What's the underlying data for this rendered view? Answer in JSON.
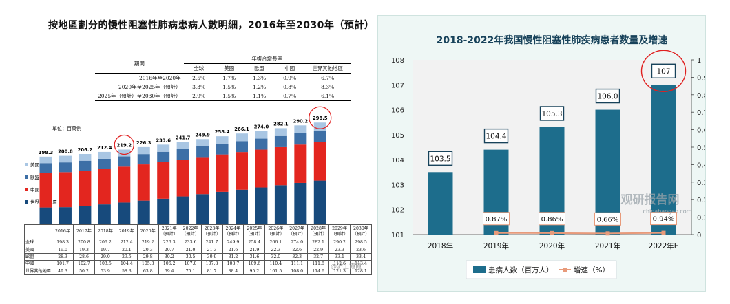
{
  "chart_data": [
    {
      "type": "bar",
      "title": "按地區劃分的慢性阻塞性肺病患病人數明細，2016年至2030年（預計）",
      "unit": "單位：百萬例",
      "cagr_table": {
        "header_period": "期間",
        "header_group": "年複合增長率",
        "columns": [
          "全球",
          "美國",
          "歐盟",
          "中國",
          "世界其他地區"
        ],
        "rows": [
          {
            "period": "2016年至2020年",
            "values": [
              "2.5%",
              "1.7%",
              "1.3%",
              "0.9%",
              "6.7%"
            ]
          },
          {
            "period": "2020年至2025年（預計）",
            "values": [
              "3.3%",
              "1.5%",
              "1.2%",
              "0.8%",
              "8.3%"
            ]
          },
          {
            "period": "2025年（預計）至2030年（預計）",
            "values": [
              "2.9%",
              "1.5%",
              "1.1%",
              "0.7%",
              "6.1%"
            ]
          }
        ]
      },
      "categories": [
        "2016年",
        "2017年",
        "2018年",
        "2019年",
        "2020年",
        "2021年（預計）",
        "2022年（預計）",
        "2023年（預計）",
        "2024年（預計）",
        "2025年（預計）",
        "2026年（預計）",
        "2027年（預計）",
        "2028年（預計）",
        "2029年（預計）",
        "2030年（預計）"
      ],
      "totals": [
        "198.3",
        "200.8",
        "206.2",
        "212.4",
        "219.2",
        "226.3",
        "233.6",
        "241.7",
        "249.9",
        "258.4",
        "266.1",
        "274.0",
        "282.1",
        "290.2",
        "298.5"
      ],
      "highlight_labels": [
        "219.2",
        "298.5"
      ],
      "series": [
        {
          "name": "世界其他地區",
          "color": "#174a7c",
          "values": [
            49.3,
            50.2,
            53.9,
            58.3,
            63.8,
            69.4,
            75.1,
            81.7,
            88.4,
            95.2,
            101.5,
            108.0,
            114.6,
            121.3,
            128.1
          ]
        },
        {
          "name": "中國",
          "color": "#e3261f",
          "values": [
            101.7,
            102.7,
            103.5,
            104.4,
            105.3,
            106.2,
            107.0,
            107.8,
            108.7,
            109.6,
            110.4,
            111.1,
            111.8,
            112.6,
            113.4
          ]
        },
        {
          "name": "歐盟",
          "color": "#3d6fa6",
          "values": [
            28.3,
            28.6,
            29.0,
            29.5,
            29.8,
            30.2,
            30.5,
            30.9,
            31.2,
            31.6,
            32.0,
            32.3,
            32.7,
            33.1,
            33.4
          ]
        },
        {
          "name": "美國",
          "color": "#a9c6e3",
          "values": [
            19.0,
            19.3,
            19.7,
            20.1,
            20.3,
            20.7,
            21.0,
            21.3,
            21.6,
            21.9,
            22.3,
            22.6,
            22.9,
            23.3,
            23.6
          ]
        }
      ],
      "table_row_labels": [
        "全球",
        "美國",
        "歐盟",
        "中國",
        "世界其他地區"
      ],
      "legend": [
        "美國",
        "歐盟",
        "中國",
        "世界其他地區"
      ],
      "watermark": "@沪上霞霞"
    },
    {
      "type": "bar",
      "title": "2018-2022年我国慢性阻塞性肺疾病患者数量及增速",
      "categories": [
        "2018年",
        "2019年",
        "2020年",
        "2021年",
        "2022年E"
      ],
      "series": [
        {
          "name": "患病人数（百万人）",
          "color": "#1d6d8c",
          "values": [
            103.5,
            104.4,
            105.3,
            106.0,
            107
          ],
          "labels": [
            "103.5",
            "104.4",
            "105.3",
            "106.0",
            "107"
          ]
        },
        {
          "name": "增速（%）",
          "color": "#e89a7a",
          "type": "line",
          "values": [
            null,
            0.87,
            0.86,
            0.66,
            0.94
          ],
          "labels": [
            "",
            "0.87%",
            "0.86%",
            "0.66%",
            "0.94%"
          ]
        }
      ],
      "ylim": [
        101,
        108
      ],
      "y_ticks": [
        "101",
        "102",
        "103",
        "104",
        "105",
        "106",
        "107",
        "108"
      ],
      "y2lim": [
        0,
        1
      ],
      "y2_ticks": [
        "0",
        "0.1",
        "0.2",
        "0.3",
        "0.4",
        "0.5",
        "0.6",
        "0.7",
        "0.8",
        "0.9",
        "1"
      ],
      "watermark": "观研报告网",
      "watermark_url": "chinabaogao.com"
    }
  ]
}
